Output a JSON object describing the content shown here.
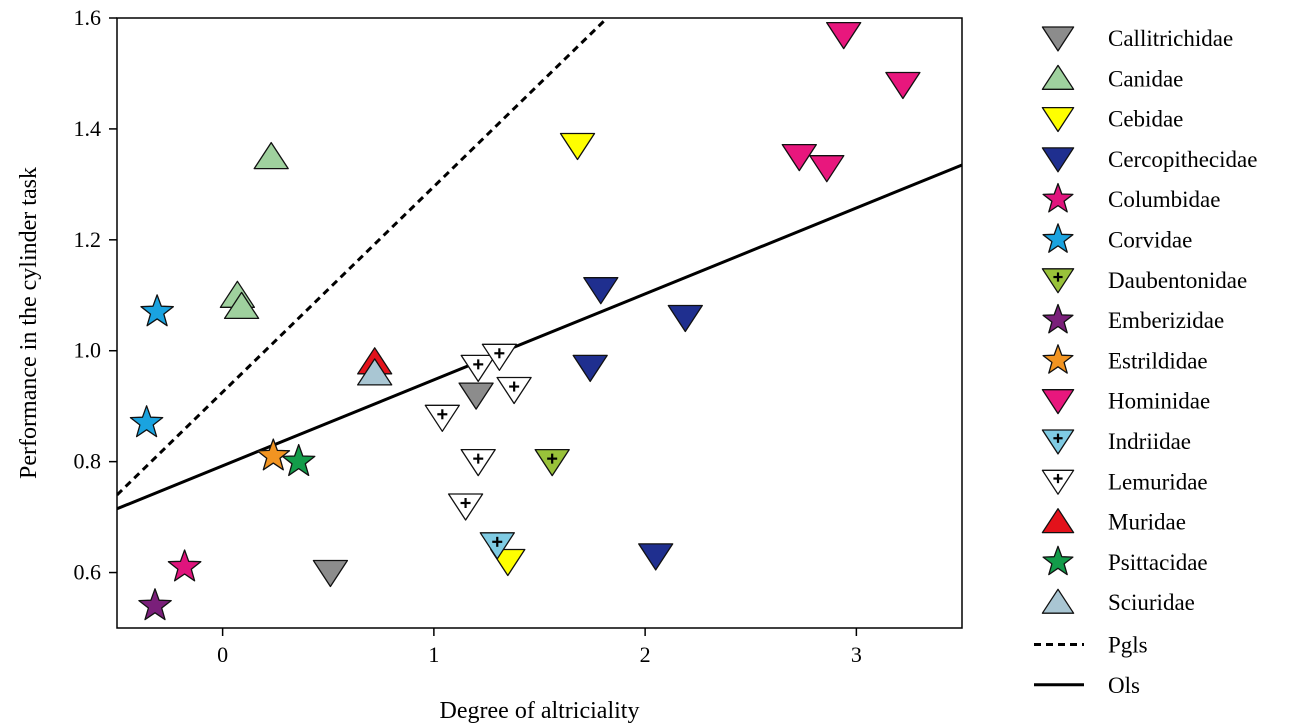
{
  "chart_data": {
    "type": "scatter",
    "xlabel": "Degree of altriciality",
    "ylabel": "Performance in the cylinder task",
    "xlim": [
      -0.5,
      3.5
    ],
    "ylim": [
      0.5,
      1.6
    ],
    "xticks": [
      0,
      1,
      2,
      3
    ],
    "yticks": [
      0.6,
      0.8,
      1.0,
      1.2,
      1.4,
      1.6
    ],
    "xtick_labels": [
      "0",
      "1",
      "2",
      "3"
    ],
    "ytick_labels": [
      "0.6",
      "0.8",
      "1.0",
      "1.2",
      "1.4",
      "1.6"
    ],
    "grid": false,
    "legend_position": "right",
    "families": [
      {
        "name": "Callitrichidae",
        "marker": "triangle-down",
        "color": "#8c8c8c",
        "cross": false
      },
      {
        "name": "Canidae",
        "marker": "triangle-up",
        "color": "#9fd19e",
        "cross": false
      },
      {
        "name": "Cebidae",
        "marker": "triangle-down",
        "color": "#ffff00",
        "cross": false
      },
      {
        "name": "Cercopithecidae",
        "marker": "triangle-down",
        "color": "#1f2f8f",
        "cross": false
      },
      {
        "name": "Columbidae",
        "marker": "star",
        "color": "#e0147d",
        "cross": false
      },
      {
        "name": "Corvidae",
        "marker": "star",
        "color": "#1aa3e0",
        "cross": false
      },
      {
        "name": "Daubentonidae",
        "marker": "triangle-down",
        "color": "#99c23a",
        "cross": true
      },
      {
        "name": "Emberizidae",
        "marker": "star",
        "color": "#7a1f7a",
        "cross": false
      },
      {
        "name": "Estrildidae",
        "marker": "star",
        "color": "#f29421",
        "cross": false
      },
      {
        "name": "Hominidae",
        "marker": "triangle-down",
        "color": "#e8177d",
        "cross": false
      },
      {
        "name": "Indriidae",
        "marker": "triangle-down",
        "color": "#7fcbe3",
        "cross": true
      },
      {
        "name": "Lemuridae",
        "marker": "triangle-down",
        "color": "#ffffff",
        "cross": true
      },
      {
        "name": "Muridae",
        "marker": "triangle-up",
        "color": "#e3121b",
        "cross": false
      },
      {
        "name": "Psittacidae",
        "marker": "star",
        "color": "#139c4a",
        "cross": false
      },
      {
        "name": "Sciuridae",
        "marker": "triangle-up",
        "color": "#a9c6d3",
        "cross": false
      }
    ],
    "points": [
      {
        "family": "Callitrichidae",
        "x": 1.2,
        "y": 0.92
      },
      {
        "family": "Callitrichidae",
        "x": 0.51,
        "y": 0.6
      },
      {
        "family": "Canidae",
        "x": 0.23,
        "y": 1.35
      },
      {
        "family": "Canidae",
        "x": 0.07,
        "y": 1.1
      },
      {
        "family": "Canidae",
        "x": 0.09,
        "y": 1.08
      },
      {
        "family": "Cebidae",
        "x": 1.68,
        "y": 1.37
      },
      {
        "family": "Cebidae",
        "x": 1.35,
        "y": 0.62
      },
      {
        "family": "Cercopithecidae",
        "x": 1.79,
        "y": 1.11
      },
      {
        "family": "Cercopithecidae",
        "x": 2.19,
        "y": 1.06
      },
      {
        "family": "Cercopithecidae",
        "x": 1.74,
        "y": 0.97
      },
      {
        "family": "Cercopithecidae",
        "x": 2.05,
        "y": 0.63
      },
      {
        "family": "Columbidae",
        "x": -0.18,
        "y": 0.61
      },
      {
        "family": "Corvidae",
        "x": -0.31,
        "y": 1.07
      },
      {
        "family": "Corvidae",
        "x": -0.36,
        "y": 0.87
      },
      {
        "family": "Daubentonidae",
        "x": 1.56,
        "y": 0.8
      },
      {
        "family": "Emberizidae",
        "x": -0.32,
        "y": 0.54
      },
      {
        "family": "Estrildidae",
        "x": 0.24,
        "y": 0.81
      },
      {
        "family": "Hominidae",
        "x": 2.94,
        "y": 1.57
      },
      {
        "family": "Hominidae",
        "x": 3.22,
        "y": 1.48
      },
      {
        "family": "Hominidae",
        "x": 2.73,
        "y": 1.35
      },
      {
        "family": "Hominidae",
        "x": 2.86,
        "y": 1.33
      },
      {
        "family": "Indriidae",
        "x": 1.3,
        "y": 0.65
      },
      {
        "family": "Lemuridae",
        "x": 1.21,
        "y": 0.97
      },
      {
        "family": "Lemuridae",
        "x": 1.31,
        "y": 0.99
      },
      {
        "family": "Lemuridae",
        "x": 1.38,
        "y": 0.93
      },
      {
        "family": "Lemuridae",
        "x": 1.04,
        "y": 0.88
      },
      {
        "family": "Lemuridae",
        "x": 1.21,
        "y": 0.8
      },
      {
        "family": "Lemuridae",
        "x": 1.15,
        "y": 0.72
      },
      {
        "family": "Muridae",
        "x": 0.72,
        "y": 0.98
      },
      {
        "family": "Psittacidae",
        "x": 0.36,
        "y": 0.8
      },
      {
        "family": "Sciuridae",
        "x": 0.72,
        "y": 0.96
      }
    ],
    "lines": [
      {
        "name": "Pgls",
        "style": "dashed",
        "x1": -0.5,
        "y1": 0.74,
        "x2": 1.82,
        "y2": 1.6
      },
      {
        "name": "Ols",
        "style": "solid",
        "x1": -0.5,
        "y1": 0.715,
        "x2": 3.5,
        "y2": 1.335
      }
    ]
  }
}
